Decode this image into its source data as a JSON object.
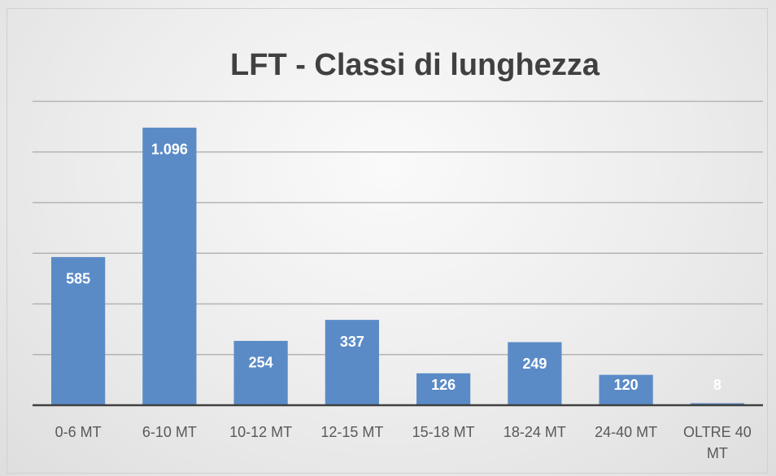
{
  "chart_data": {
    "type": "bar",
    "title": "LFT - Classi di lunghezza",
    "categories": [
      "0-6 MT",
      "6-10 MT",
      "10-12 MT",
      "12-15 MT",
      "15-18 MT",
      "18-24 MT",
      "24-40 MT",
      "OLTRE 40 MT"
    ],
    "values": [
      585,
      1096,
      254,
      337,
      126,
      249,
      120,
      8
    ],
    "value_labels": [
      "585",
      "1.096",
      "254",
      "337",
      "126",
      "249",
      "120",
      "8"
    ],
    "color": "#5b8bc7",
    "ylim": [
      0,
      1200
    ],
    "yticks": [
      0,
      200,
      400,
      600,
      800,
      1000,
      1200
    ],
    "grid": true
  }
}
